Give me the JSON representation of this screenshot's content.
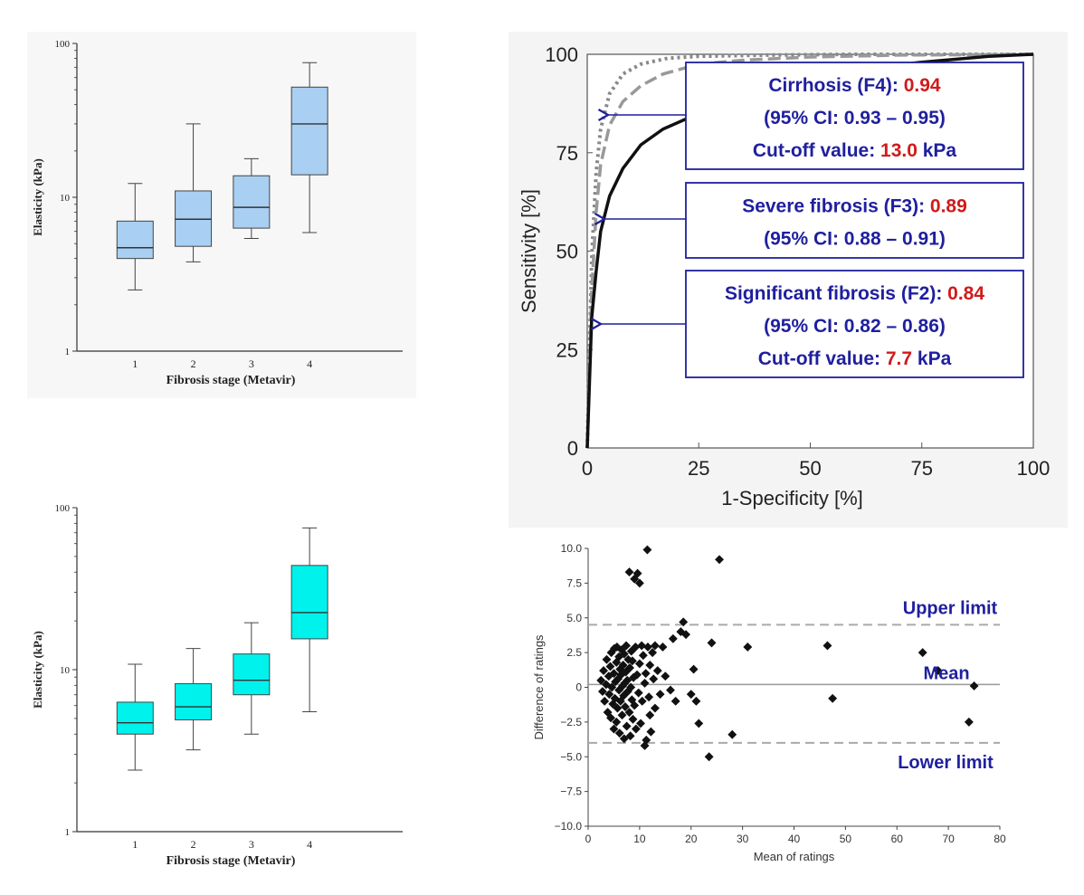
{
  "chart_data": [
    {
      "id": "box1",
      "type": "box",
      "title": "",
      "xlabel": "Fibrosis stage (Metavir)",
      "ylabel": "Elasticity (kPa)",
      "yscale": "log",
      "ylim": [
        1,
        100
      ],
      "yticks": [
        "1",
        "10",
        "100"
      ],
      "categories": [
        "1",
        "2",
        "3",
        "4"
      ],
      "fill_color": "#a9cff2",
      "boxes": [
        {
          "min": 2.5,
          "q1": 4.0,
          "median": 4.7,
          "q3": 7.0,
          "max": 12.3
        },
        {
          "min": 3.8,
          "q1": 4.8,
          "median": 7.2,
          "q3": 11.0,
          "max": 30.0
        },
        {
          "min": 5.4,
          "q1": 6.3,
          "median": 8.6,
          "q3": 13.8,
          "max": 17.8
        },
        {
          "min": 5.9,
          "q1": 14.0,
          "median": 30.0,
          "q3": 52.0,
          "max": 75.0
        }
      ]
    },
    {
      "id": "box2",
      "type": "box",
      "title": "",
      "xlabel": "Fibrosis stage (Metavir)",
      "ylabel": "Elasticity (kPa)",
      "yscale": "log",
      "ylim": [
        1,
        100
      ],
      "yticks": [
        "1",
        "10",
        "100"
      ],
      "categories": [
        "1",
        "2",
        "3",
        "4"
      ],
      "fill_color": "#00f2ec",
      "boxes": [
        {
          "min": 2.4,
          "q1": 4.0,
          "median": 4.7,
          "q3": 6.3,
          "max": 10.8
        },
        {
          "min": 3.2,
          "q1": 4.9,
          "median": 5.9,
          "q3": 8.2,
          "max": 13.5
        },
        {
          "min": 4.0,
          "q1": 7.0,
          "median": 8.6,
          "q3": 12.5,
          "max": 19.5
        },
        {
          "min": 5.5,
          "q1": 15.5,
          "median": 22.5,
          "q3": 44.0,
          "max": 75.0
        }
      ]
    },
    {
      "id": "roc",
      "type": "line",
      "title": "",
      "xlabel": "1-Specificity [%]",
      "ylabel": "Sensitivity [%]",
      "xlim": [
        0,
        100
      ],
      "ylim": [
        0,
        100
      ],
      "xticks": [
        "0",
        "25",
        "50",
        "75",
        "100"
      ],
      "yticks": [
        "0",
        "25",
        "50",
        "75",
        "100"
      ],
      "series": [
        {
          "style": "solid",
          "x": [
            0,
            1,
            2,
            3,
            5,
            8,
            12,
            17,
            23,
            30,
            40,
            50,
            60,
            75,
            90,
            100
          ],
          "y": [
            0,
            33,
            45,
            55,
            64,
            71,
            77,
            81,
            84,
            87,
            91,
            94,
            96,
            98,
            99.5,
            100
          ]
        },
        {
          "style": "dashed",
          "x": [
            0,
            1,
            2,
            3,
            5,
            8,
            12,
            17,
            25,
            35,
            50,
            70,
            100
          ],
          "y": [
            0,
            40,
            60,
            72,
            82,
            88,
            92,
            95,
            97.5,
            98.5,
            99.3,
            99.8,
            100
          ]
        },
        {
          "style": "dotted",
          "x": [
            0,
            1,
            2,
            3,
            5,
            8,
            12,
            18,
            25,
            40,
            60,
            100
          ],
          "y": [
            0,
            48,
            70,
            81,
            90,
            95,
            97.5,
            99,
            99.5,
            99.8,
            100,
            100
          ]
        }
      ],
      "annotations": [
        {
          "lines": [
            {
              "text": "Cirrhosis (F4): ",
              "value": "0.94"
            },
            {
              "text": "(95% CI: 0.93 – 0.95)"
            },
            {
              "text": "Cut-off value: ",
              "value": "13.0",
              "unit": " kPa"
            }
          ]
        },
        {
          "lines": [
            {
              "text": "Severe fibrosis (F3): ",
              "value": "0.89"
            },
            {
              "text": "(95% CI: 0.88 – 0.91)"
            }
          ]
        },
        {
          "lines": [
            {
              "text": "Significant fibrosis (F2): ",
              "value": "0.84"
            },
            {
              "text": "(95% CI: 0.82 – 0.86)"
            },
            {
              "text": "Cut-off value: ",
              "value": "7.7",
              "unit": " kPa"
            }
          ]
        }
      ],
      "colors": {
        "annotation_text": "#1f1f9e",
        "annotation_value": "#d11a1a",
        "arrow": "#1f1f9e"
      }
    },
    {
      "id": "ba",
      "type": "scatter",
      "title": "",
      "xlabel": "Mean of ratings",
      "ylabel": "Difference of ratings",
      "xlim": [
        0,
        80
      ],
      "ylim": [
        -10,
        10
      ],
      "xticks": [
        "0",
        "10",
        "20",
        "30",
        "40",
        "50",
        "60",
        "70",
        "80"
      ],
      "yticks": [
        "10.0",
        "7.5",
        "5.0",
        "2.5",
        "0",
        "−2.5",
        "−5.0",
        "−7.5",
        "−10.0"
      ],
      "reference_lines": [
        {
          "label": "Upper limit",
          "y": 4.5,
          "style": "dashed"
        },
        {
          "label": "Mean",
          "y": 0.2,
          "style": "solid"
        },
        {
          "label": "Lower limit",
          "y": -4.0,
          "style": "dashed"
        }
      ],
      "points": [
        [
          2.5,
          0.5
        ],
        [
          2.8,
          -0.3
        ],
        [
          3,
          1.2
        ],
        [
          3.2,
          -1.0
        ],
        [
          3.5,
          0.2
        ],
        [
          3.6,
          2.0
        ],
        [
          3.8,
          -1.8
        ],
        [
          4,
          0.8
        ],
        [
          4.1,
          -0.5
        ],
        [
          4.3,
          1.5
        ],
        [
          4.4,
          -2.2
        ],
        [
          4.5,
          2.5
        ],
        [
          4.6,
          0.0
        ],
        [
          4.8,
          -1.2
        ],
        [
          5,
          1.0
        ],
        [
          5,
          -3.0
        ],
        [
          5.1,
          2.8
        ],
        [
          5.2,
          -0.8
        ],
        [
          5.3,
          0.4
        ],
        [
          5.5,
          -2.5
        ],
        [
          5.5,
          1.8
        ],
        [
          5.6,
          2.9
        ],
        [
          5.7,
          -1.5
        ],
        [
          5.8,
          0.6
        ],
        [
          6,
          -0.2
        ],
        [
          6,
          2.2
        ],
        [
          6.1,
          -3.3
        ],
        [
          6.2,
          1.3
        ],
        [
          6.3,
          -1.0
        ],
        [
          6.4,
          0.9
        ],
        [
          6.5,
          2.7
        ],
        [
          6.6,
          -2.0
        ],
        [
          6.7,
          0.1
        ],
        [
          6.8,
          1.6
        ],
        [
          6.9,
          -0.6
        ],
        [
          7,
          -3.7
        ],
        [
          7,
          2.4
        ],
        [
          7.1,
          0.3
        ],
        [
          7.2,
          -1.4
        ],
        [
          7.3,
          1.1
        ],
        [
          7.4,
          3.0
        ],
        [
          7.5,
          -2.8
        ],
        [
          7.6,
          0.5
        ],
        [
          7.7,
          -0.3
        ],
        [
          7.8,
          2.0
        ],
        [
          8,
          8.3
        ],
        [
          8,
          -1.8
        ],
        [
          8.1,
          1.4
        ],
        [
          8.2,
          -3.5
        ],
        [
          8.3,
          0.0
        ],
        [
          8.4,
          2.6
        ],
        [
          8.5,
          -0.9
        ],
        [
          8.6,
          1.9
        ],
        [
          8.7,
          -2.3
        ],
        [
          8.8,
          0.7
        ],
        [
          9,
          7.8
        ],
        [
          9,
          -1.3
        ],
        [
          9.2,
          2.9
        ],
        [
          9.3,
          -3.0
        ],
        [
          9.5,
          0.9
        ],
        [
          9.6,
          8.2
        ],
        [
          9.8,
          -0.4
        ],
        [
          10,
          7.5
        ],
        [
          10,
          1.7
        ],
        [
          10.2,
          -2.6
        ],
        [
          10.4,
          3.0
        ],
        [
          10.5,
          -1.0
        ],
        [
          10.7,
          2.3
        ],
        [
          11,
          -4.2
        ],
        [
          11,
          0.3
        ],
        [
          11.2,
          1.0
        ],
        [
          11.3,
          -3.8
        ],
        [
          11.5,
          9.9
        ],
        [
          11.6,
          2.9
        ],
        [
          11.8,
          -0.7
        ],
        [
          12,
          1.6
        ],
        [
          12,
          -2.0
        ],
        [
          12.2,
          -3.2
        ],
        [
          12.5,
          2.5
        ],
        [
          12.7,
          0.6
        ],
        [
          13,
          -1.5
        ],
        [
          13,
          3.0
        ],
        [
          13.5,
          1.2
        ],
        [
          14,
          -0.5
        ],
        [
          14.5,
          2.9
        ],
        [
          15,
          0.8
        ],
        [
          16,
          -0.2
        ],
        [
          16.5,
          3.5
        ],
        [
          17,
          -1.0
        ],
        [
          18,
          4.0
        ],
        [
          18.5,
          4.7
        ],
        [
          19,
          3.8
        ],
        [
          20,
          -0.5
        ],
        [
          20.5,
          1.3
        ],
        [
          21,
          -1.0
        ],
        [
          21.5,
          -2.6
        ],
        [
          23.5,
          -5.0
        ],
        [
          24,
          3.2
        ],
        [
          25.5,
          9.2
        ],
        [
          28,
          -3.4
        ],
        [
          31,
          2.9
        ],
        [
          46.5,
          3.0
        ],
        [
          47.5,
          -0.8
        ],
        [
          65,
          2.5
        ],
        [
          68,
          1.2
        ],
        [
          74,
          -2.5
        ],
        [
          75,
          0.1
        ]
      ]
    }
  ]
}
